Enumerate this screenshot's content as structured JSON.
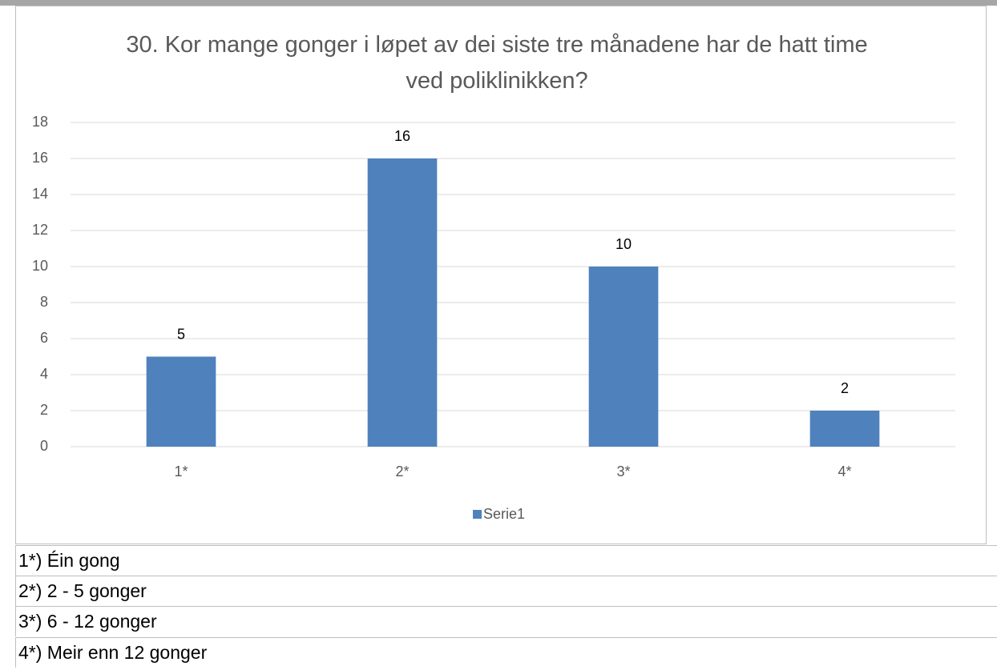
{
  "chart_data": {
    "type": "bar",
    "title": "30. Kor mange gonger i løpet av dei siste tre månadene har de hatt time ved poliklinikken?",
    "categories": [
      "1*",
      "2*",
      "3*",
      "4*"
    ],
    "series": [
      {
        "name": "Serie1",
        "color": "#4f81bd",
        "values": [
          5,
          16,
          10,
          2
        ]
      }
    ],
    "ylim": [
      0,
      18
    ],
    "yticks": [
      0,
      2,
      4,
      6,
      8,
      10,
      12,
      14,
      16,
      18
    ],
    "grid": true,
    "legend": "bottom"
  },
  "footnotes": [
    "1*) Éin gong",
    "2*) 2 - 5 gonger",
    "3*) 6 - 12 gonger",
    "4*) Meir enn 12 gonger"
  ]
}
